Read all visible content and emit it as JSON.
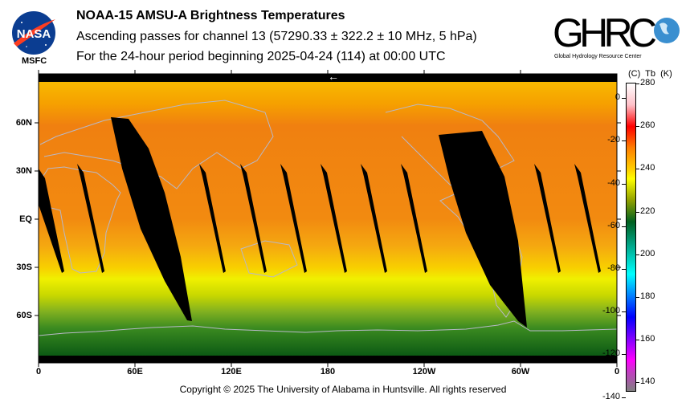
{
  "header": {
    "title": "NOAA-15 AMSU-A Brightness Temperatures",
    "subtitle": "Ascending passes for channel 13 (57290.33 ± 322.2 ± 10 MHz, 5 hPa)",
    "period": "For the 24-hour period beginning 2025-04-24 (114) at 00:00 UTC"
  },
  "logos": {
    "nasa": {
      "text": "NASA",
      "caption": "MSFC"
    },
    "ghrc": {
      "text": "GHRC",
      "caption": "Global Hydrology Resource Center"
    }
  },
  "map": {
    "lat_labels": [
      "60N",
      "30N",
      "EQ",
      "30S",
      "60S"
    ],
    "lon_labels": [
      "0",
      "60E",
      "120E",
      "180",
      "120W",
      "60W",
      "0"
    ],
    "direction_arrow": "←"
  },
  "colorbar": {
    "header": "(C)  Tb  (K)",
    "kelvin_ticks": [
      "280",
      "260",
      "240",
      "220",
      "200",
      "180",
      "160",
      "140"
    ],
    "celsius_ticks": [
      "0",
      "-20",
      "-40",
      "-60",
      "-80",
      "-100",
      "-120",
      "-140"
    ],
    "range_k": [
      136,
      280
    ]
  },
  "footer": {
    "copyright": "Copyright © 2025 The University of Alabama in Huntsville.  All rights reserved"
  }
}
